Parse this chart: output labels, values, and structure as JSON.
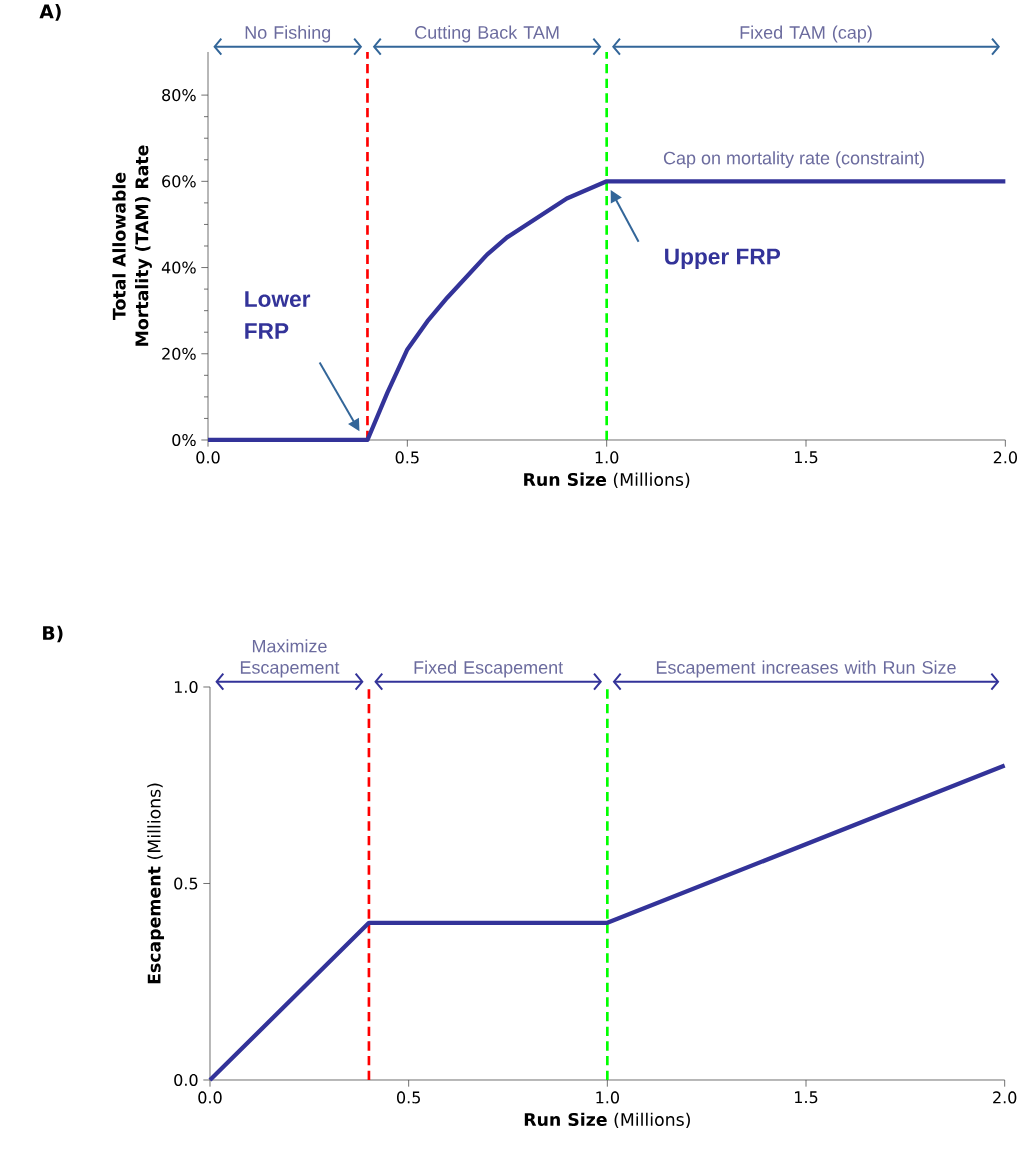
{
  "chart_data": [
    {
      "type": "line",
      "title": "A)",
      "xlabel": "**Run Size** (Millions)",
      "ylabel": "Total Allowable Mortality (TAM) Rate",
      "xlim": [
        0,
        2
      ],
      "xticks": [
        {
          "value": 0,
          "label": "0.0"
        },
        {
          "value": 0.5,
          "label": "0.5"
        },
        {
          "value": 1,
          "label": "1.0"
        },
        {
          "value": 1.5,
          "label": "1.5"
        },
        {
          "value": 2,
          "label": "2.0"
        }
      ],
      "ylim": [
        0,
        90
      ],
      "yticks": [
        {
          "value": 0,
          "label": "0%"
        },
        {
          "value": 20,
          "label": "20%"
        },
        {
          "value": 40,
          "label": "40%"
        },
        {
          "value": 60,
          "label": "60%"
        },
        {
          "value": 80,
          "label": "80%"
        }
      ],
      "x": [
        0,
        0.4,
        0.45,
        0.5,
        0.55,
        0.6,
        0.65,
        0.7,
        0.75,
        0.8,
        0.85,
        0.9,
        0.95,
        1.0,
        2.0
      ],
      "series": [
        {
          "color": "#333399",
          "values": [
            0,
            0,
            11,
            21,
            27.5,
            33,
            38,
            43,
            47,
            50,
            53,
            56,
            58,
            60,
            60
          ]
        }
      ],
      "ref_lines": [
        {
          "axis": "x",
          "value": 0.4,
          "color": "#ff0000",
          "line_style": "dashed"
        },
        {
          "axis": "x",
          "value": 1.0,
          "color": "#00ff00",
          "line_style": "dashed"
        }
      ],
      "annotations": [
        "No Fishing",
        "Cutting Back TAM",
        "Fixed TAM (cap)",
        "Lower FRP",
        "Upper FRP",
        {
          "text": "Cap on mortality rate (constraint)",
          "x": 1.47,
          "y": 60
        }
      ],
      "marker": "none",
      "line_style": "solid"
    },
    {
      "type": "line",
      "title": "B)",
      "xlabel": "**Run Size** (Millions)",
      "ylabel": "**Escapement** (Millions)",
      "xlim": [
        0,
        2
      ],
      "xticks": [
        {
          "value": 0,
          "label": "0.0"
        },
        {
          "value": 0.5,
          "label": "0.5"
        },
        {
          "value": 1,
          "label": "1.0"
        },
        {
          "value": 1.5,
          "label": "1.5"
        },
        {
          "value": 2,
          "label": "2.0"
        }
      ],
      "ylim": [
        0,
        1
      ],
      "yticks": [
        {
          "value": 0,
          "label": "0.0"
        },
        {
          "value": 0.5,
          "label": "0.5"
        },
        {
          "value": 1,
          "label": "1.0"
        }
      ],
      "x": [
        0,
        0.4,
        1.0,
        2.0
      ],
      "series": [
        {
          "color": "#333399",
          "values": [
            0,
            0.4,
            0.4,
            0.8
          ]
        }
      ],
      "ref_lines": [
        {
          "axis": "x",
          "value": 0.4,
          "color": "#ff0000",
          "line_style": "dashed"
        },
        {
          "axis": "x",
          "value": 1.0,
          "color": "#00ff00",
          "line_style": "dashed"
        }
      ],
      "annotations": [
        "Maximize Escapement",
        "Fixed Escapement",
        "Escapement increases with Run Size"
      ],
      "marker": "none",
      "line_style": "solid"
    }
  ]
}
